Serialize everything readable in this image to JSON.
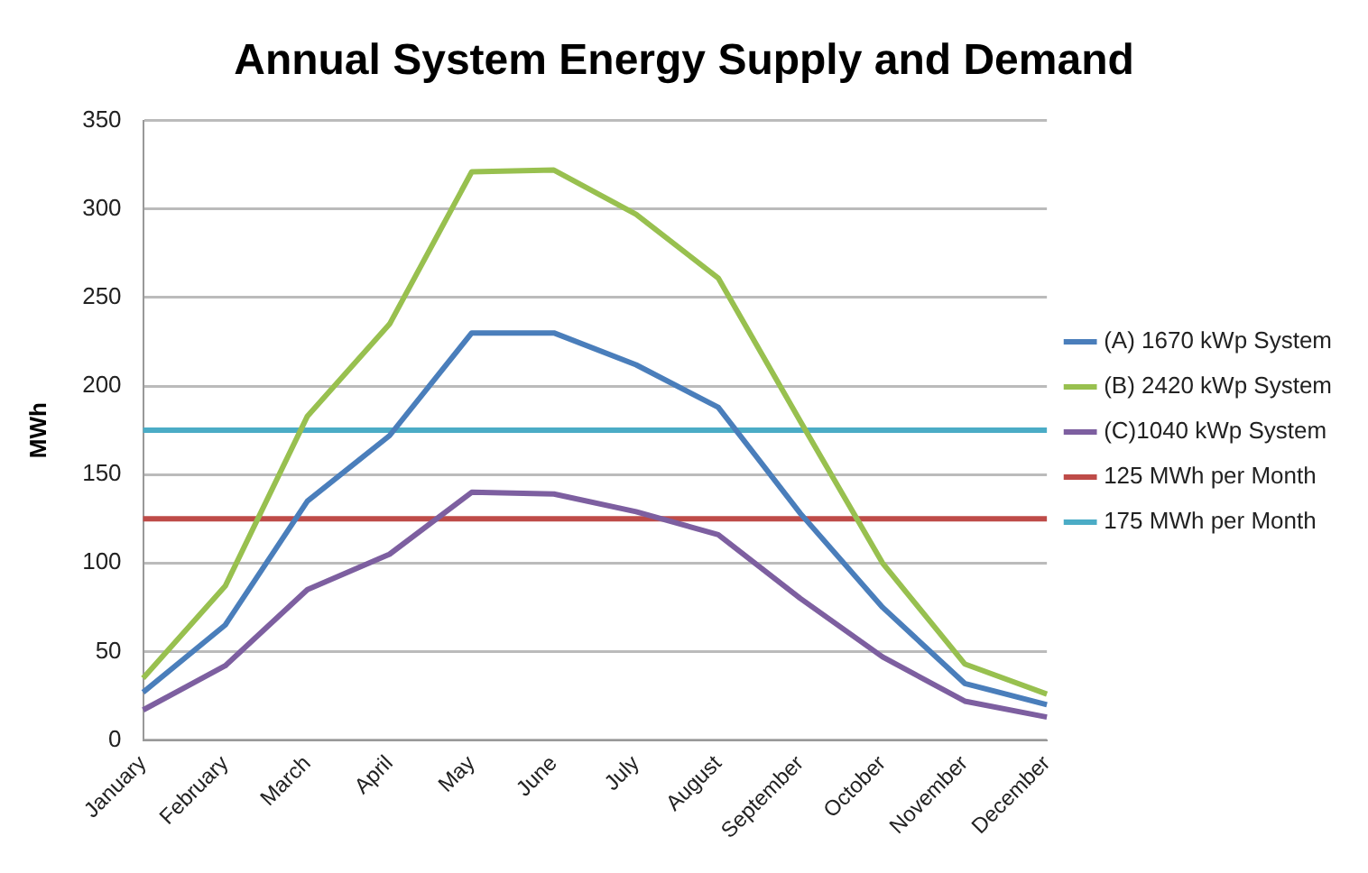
{
  "chart_data": {
    "type": "line",
    "title": "Annual System Energy Supply and Demand",
    "ylabel": "MWh",
    "categories": [
      "January",
      "February",
      "March",
      "April",
      "May",
      "June",
      "July",
      "August",
      "September",
      "October",
      "November",
      "December"
    ],
    "series": [
      {
        "name": "(A) 1670 kWp System",
        "color": "#4a7ebb",
        "values": [
          27,
          65,
          135,
          172,
          230,
          230,
          212,
          188,
          128,
          75,
          32,
          20
        ]
      },
      {
        "name": "(B) 2420 kWp System",
        "color": "#98c04f",
        "values": [
          35,
          87,
          183,
          235,
          321,
          322,
          297,
          261,
          180,
          100,
          43,
          26
        ]
      },
      {
        "name": "(C)1040 kWp System",
        "color": "#7d5fa0",
        "values": [
          17,
          42,
          85,
          105,
          140,
          139,
          129,
          116,
          80,
          47,
          22,
          13
        ]
      },
      {
        "name": "125 MWh per Month",
        "color": "#be4b48",
        "values": [
          125,
          125,
          125,
          125,
          125,
          125,
          125,
          125,
          125,
          125,
          125,
          125
        ]
      },
      {
        "name": "175 MWh per Month",
        "color": "#4bacc6",
        "values": [
          175,
          175,
          175,
          175,
          175,
          175,
          175,
          175,
          175,
          175,
          175,
          175
        ]
      }
    ],
    "ylim": [
      0,
      350
    ],
    "yticks": [
      0,
      50,
      100,
      150,
      200,
      250,
      300,
      350
    ],
    "grid": "y",
    "legend": "right",
    "marker": "none",
    "line_style": "solid"
  }
}
